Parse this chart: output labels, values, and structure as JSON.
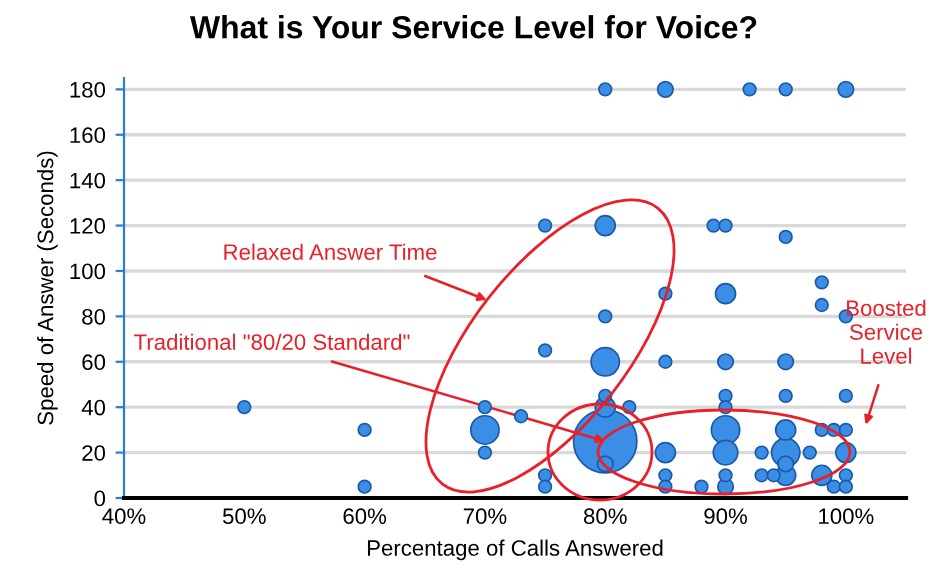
{
  "chart_data": {
    "type": "bubble",
    "title": "What is Your Service Level for Voice?",
    "xlabel": "Percentage of Calls Answered",
    "ylabel": "Speed of Answer (Seconds)",
    "annotations": [
      "Relaxed Answer Time",
      {
        "text": "Traditional \"80/20 Standard\"",
        "x": 80,
        "y": 25
      },
      "Boosted Service Level"
    ],
    "x": [
      50,
      60,
      60,
      70,
      70,
      70,
      73,
      75,
      75,
      75,
      75,
      80,
      80,
      80,
      80,
      80,
      80,
      80,
      80,
      82,
      85,
      85,
      85,
      85,
      85,
      85,
      88,
      89,
      90,
      90,
      90,
      90,
      90,
      90,
      90,
      90,
      90,
      92,
      93,
      93,
      94,
      95,
      95,
      95,
      95,
      95,
      95,
      95,
      95,
      97,
      98,
      98,
      98,
      98,
      99,
      99,
      100,
      100,
      100,
      100,
      100,
      100,
      100
    ],
    "values": [
      40,
      30,
      5,
      40,
      30,
      20,
      36,
      120,
      65,
      10,
      5,
      180,
      120,
      80,
      60,
      45,
      40,
      25,
      15,
      40,
      180,
      90,
      60,
      20,
      10,
      5,
      5,
      120,
      120,
      90,
      60,
      45,
      40,
      30,
      20,
      10,
      5,
      180,
      20,
      10,
      10,
      180,
      115,
      60,
      45,
      30,
      20,
      15,
      10,
      20,
      95,
      85,
      30,
      10,
      30,
      5,
      180,
      80,
      45,
      30,
      20,
      10,
      5
    ],
    "sizes": [
      0.04,
      0.04,
      0.04,
      0.04,
      0.2,
      0.04,
      0.04,
      0.04,
      0.04,
      0.04,
      0.04,
      0.04,
      0.1,
      0.04,
      0.2,
      0.04,
      0.1,
      1,
      0.06,
      0.04,
      0.06,
      0.04,
      0.04,
      0.1,
      0.04,
      0.04,
      0.04,
      0.04,
      0.04,
      0.1,
      0.06,
      0.04,
      0.04,
      0.2,
      0.15,
      0.04,
      0.06,
      0.04,
      0.04,
      0.04,
      0.04,
      0.04,
      0.04,
      0.06,
      0.04,
      0.1,
      0.2,
      0.06,
      0.1,
      0.04,
      0.04,
      0.04,
      0.04,
      0.1,
      0.04,
      0.04,
      0.06,
      0.04,
      0.04,
      0.04,
      0.1,
      0.04,
      0.04
    ],
    "color": "#3a8ee6",
    "xlim": [
      40,
      105
    ],
    "xticks": [
      {
        "value": 40,
        "label": "40%"
      },
      {
        "value": 50,
        "label": "50%"
      },
      {
        "value": 60,
        "label": "60%"
      },
      {
        "value": 70,
        "label": "70%"
      },
      {
        "value": 80,
        "label": "80%"
      },
      {
        "value": 90,
        "label": "90%"
      },
      {
        "value": 100,
        "label": "100%"
      }
    ],
    "ylim": [
      0,
      185
    ],
    "yticks": [
      0,
      20,
      40,
      60,
      80,
      100,
      120,
      140,
      160,
      180
    ],
    "grid": "y",
    "legend": false
  }
}
